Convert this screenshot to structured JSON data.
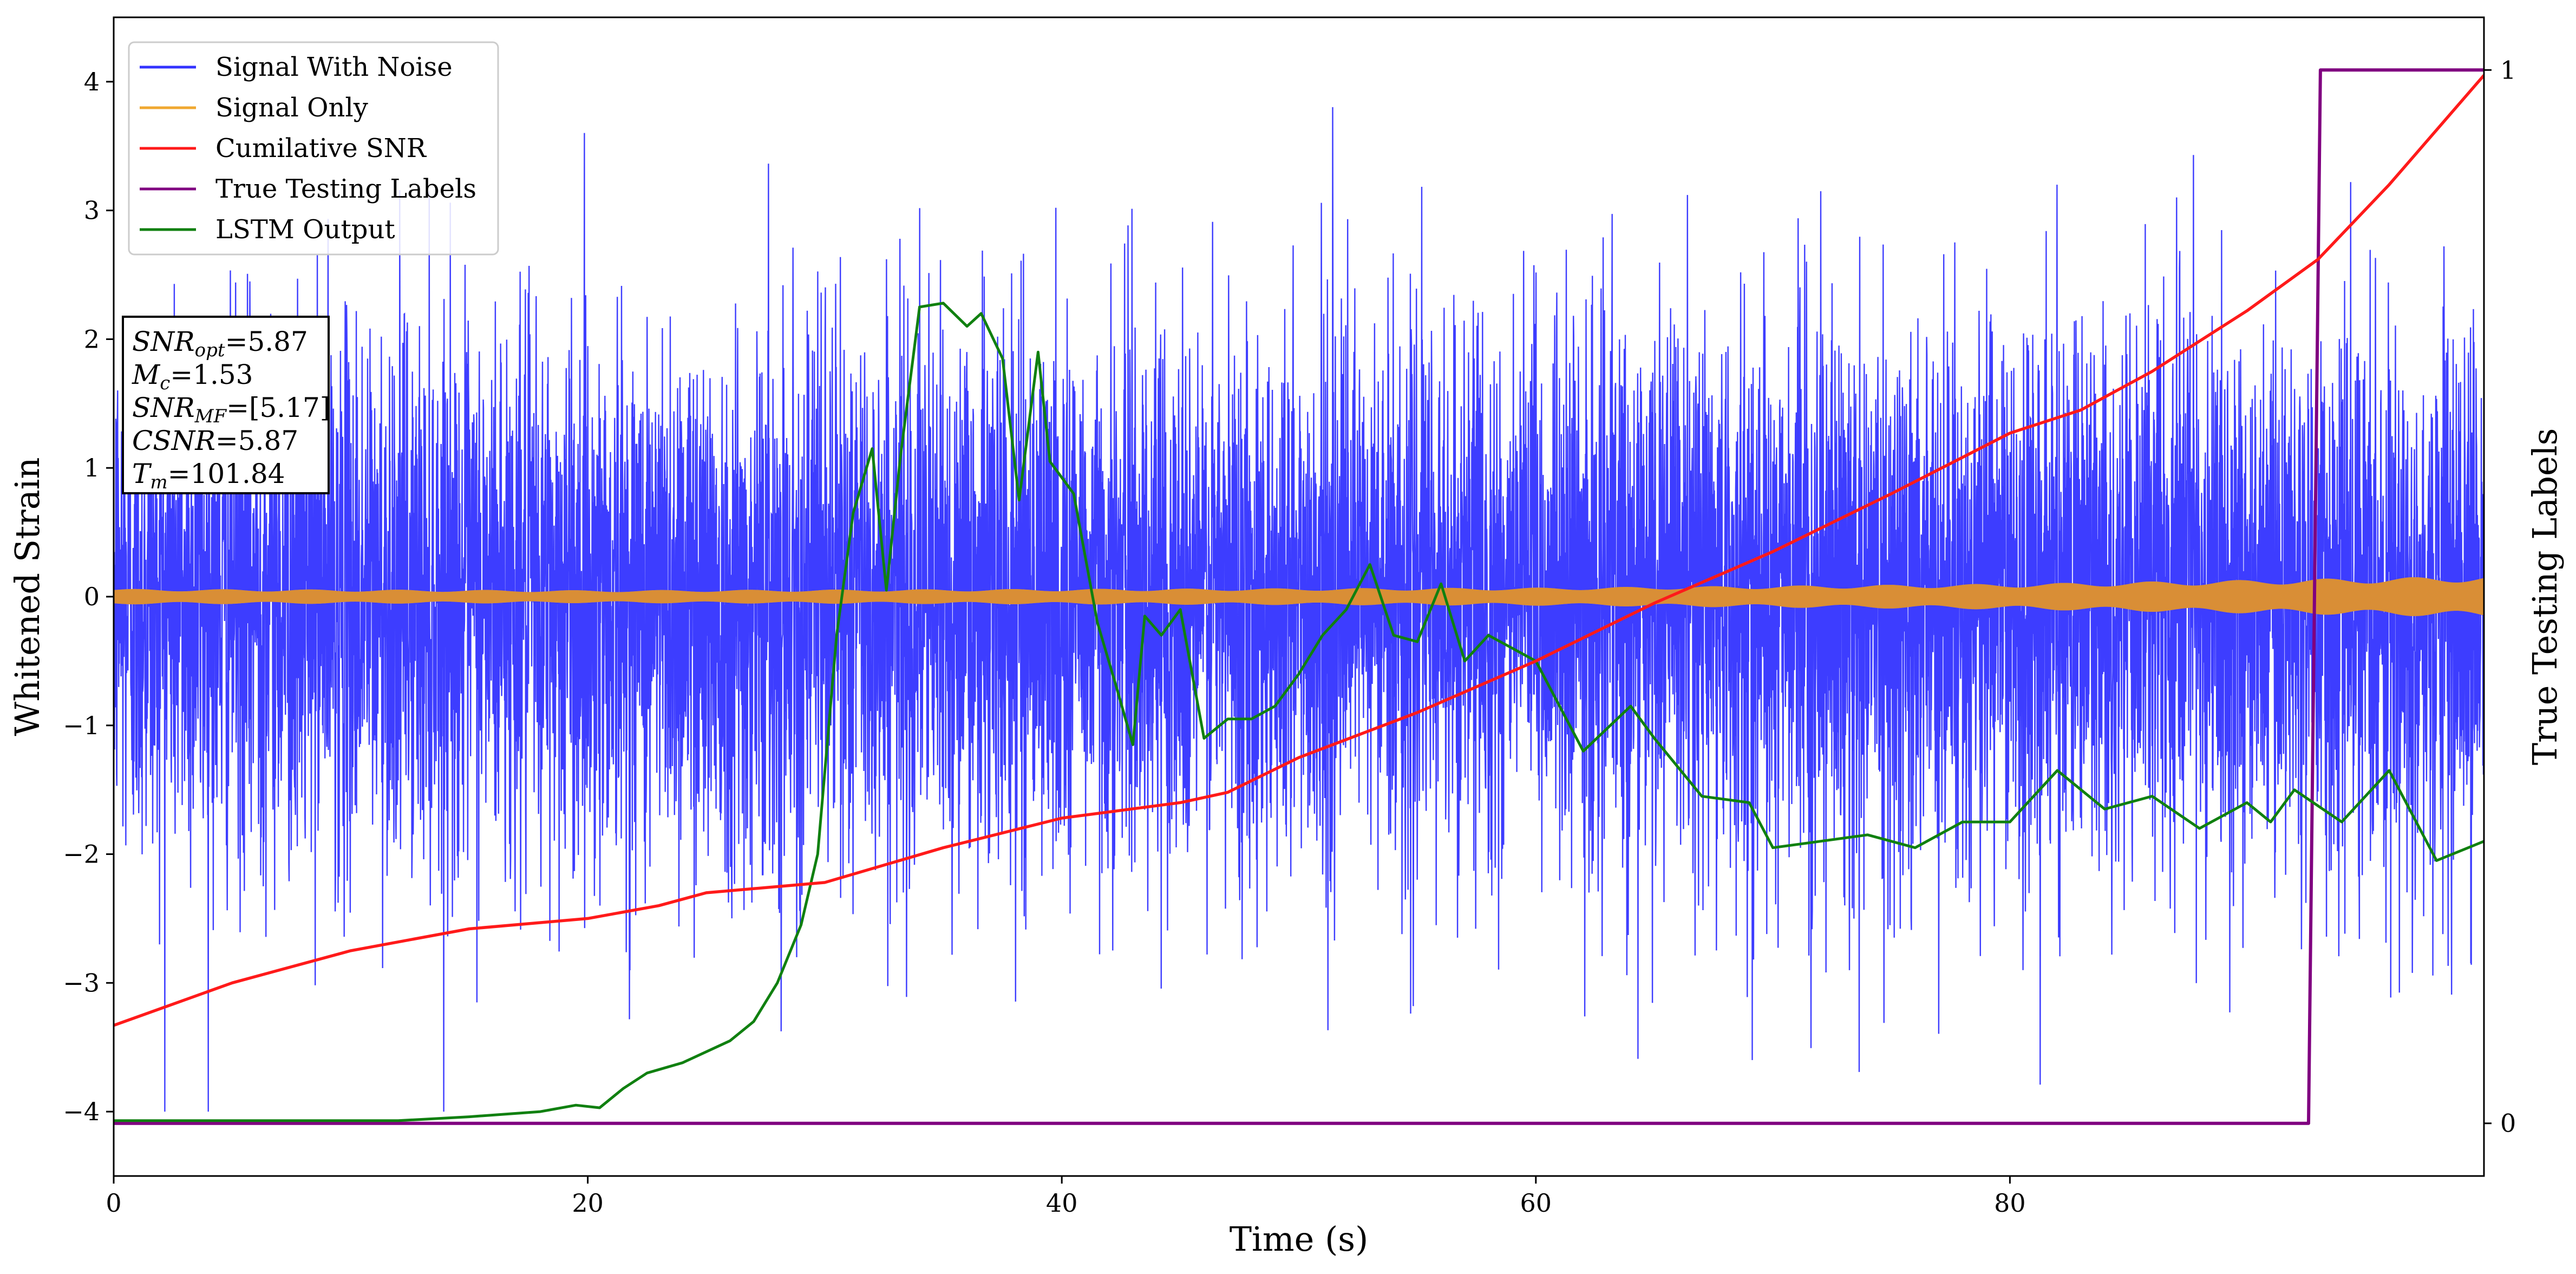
{
  "chart_data": {
    "type": "line",
    "xlabel": "Time (s)",
    "ylabel": "Whitened Strain",
    "y2label": "True Testing Labels",
    "xlim": [
      0,
      100
    ],
    "ylim": [
      -4.5,
      4.5
    ],
    "y2lim": [
      -0.05,
      1.05
    ],
    "xticks": [
      "0",
      "20",
      "40",
      "60",
      "80"
    ],
    "xtick_values": [
      0,
      20,
      40,
      60,
      80
    ],
    "yticks": [
      "−4",
      "−3",
      "−2",
      "−1",
      "0",
      "1",
      "2",
      "3",
      "4"
    ],
    "ytick_values": [
      -4,
      -3,
      -2,
      -1,
      0,
      1,
      2,
      3,
      4
    ],
    "y2ticks": [
      "0",
      "1"
    ],
    "y2tick_values": [
      0,
      1
    ],
    "grid": false,
    "legend_position": "top-left",
    "colors": {
      "signal_with_noise": "#3333ff",
      "signal_only": "#f0a830",
      "cumulative_snr": "#ff1a1a",
      "true_labels": "#800080",
      "lstm_output": "#108010"
    },
    "series": [
      {
        "name": "Signal With Noise",
        "description_values": {
          "center": 0.0,
          "typical_low": -2.3,
          "typical_high": 2.3,
          "max": 4.12,
          "min": -4.0
        }
      },
      {
        "name": "Signal Only",
        "envelope": {
          "x": [
            0,
            20,
            40,
            60,
            80,
            90,
            100
          ],
          "amplitude": [
            0.06,
            0.05,
            0.06,
            0.07,
            0.1,
            0.13,
            0.16
          ]
        }
      },
      {
        "name": "Cumilative SNR",
        "x": [
          0,
          5,
          10,
          15,
          20,
          23,
          25,
          30,
          35,
          40,
          45,
          47,
          50,
          55,
          60,
          65,
          70,
          75,
          80,
          83,
          86,
          90,
          93,
          96,
          100
        ],
        "y": [
          -3.33,
          -3.0,
          -2.75,
          -2.58,
          -2.5,
          -2.4,
          -2.3,
          -2.22,
          -1.95,
          -1.72,
          -1.6,
          -1.52,
          -1.25,
          -0.9,
          -0.5,
          -0.05,
          0.35,
          0.8,
          1.27,
          1.45,
          1.75,
          2.22,
          2.62,
          3.2,
          4.05
        ]
      },
      {
        "name": "True Testing Labels",
        "axis": "right",
        "x": [
          0,
          92.6,
          93.1,
          100
        ],
        "y": [
          0,
          0,
          1,
          1
        ]
      },
      {
        "name": "LSTM Output",
        "x": [
          0,
          12,
          15,
          18,
          19.5,
          20.5,
          21.5,
          22.5,
          24,
          26,
          27,
          28,
          29,
          29.7,
          30.5,
          31.2,
          32,
          32.6,
          33.2,
          34,
          35,
          36,
          36.6,
          37.5,
          38.2,
          39,
          39.5,
          40.5,
          41.5,
          42.3,
          43,
          43.5,
          44.2,
          45,
          46,
          47,
          48,
          49,
          50,
          51,
          52,
          53,
          54,
          55,
          56,
          57,
          58,
          60,
          62,
          64,
          65,
          67,
          69,
          70,
          72,
          74,
          76,
          78,
          80,
          82,
          84,
          86,
          88,
          90,
          91,
          92,
          94,
          96,
          98,
          100
        ],
        "y": [
          -4.07,
          -4.07,
          -4.04,
          -4.0,
          -3.95,
          -3.97,
          -3.82,
          -3.7,
          -3.62,
          -3.45,
          -3.3,
          -3.0,
          -2.55,
          -2.0,
          -0.3,
          0.65,
          1.15,
          0.05,
          1.1,
          2.25,
          2.28,
          2.1,
          2.2,
          1.85,
          0.75,
          1.9,
          1.05,
          0.8,
          -0.2,
          -0.7,
          -1.15,
          -0.15,
          -0.3,
          -0.1,
          -1.1,
          -0.95,
          -0.95,
          -0.85,
          -0.6,
          -0.3,
          -0.1,
          0.25,
          -0.3,
          -0.35,
          0.1,
          -0.5,
          -0.3,
          -0.5,
          -1.2,
          -0.85,
          -1.1,
          -1.55,
          -1.6,
          -1.95,
          -1.9,
          -1.85,
          -1.95,
          -1.75,
          -1.75,
          -1.35,
          -1.65,
          -1.55,
          -1.8,
          -1.6,
          -1.75,
          -1.5,
          -1.75,
          -1.35,
          -2.05,
          -1.9
        ]
      }
    ]
  },
  "info_box": {
    "lines": [
      {
        "sym": "SNR",
        "sub": "opt",
        "value": "=5.87"
      },
      {
        "sym": "M",
        "sub": "c",
        "value": "=1.53"
      },
      {
        "sym": "SNR",
        "sub": "MF",
        "value": "=[5.17]"
      },
      {
        "sym": "CSNR",
        "sub": "",
        "value": "=5.87"
      },
      {
        "sym": "T",
        "sub": "m",
        "value": "=101.84"
      }
    ]
  }
}
